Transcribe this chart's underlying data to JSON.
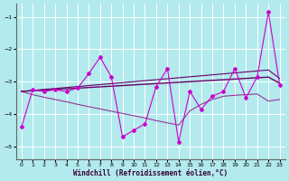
{
  "xlabel": "Windchill (Refroidissement éolien,°C)",
  "background_color": "#b2eaed",
  "grid_color": "#ffffff",
  "xlim": [
    -0.5,
    23.5
  ],
  "ylim": [
    -5.4,
    -0.6
  ],
  "xticks": [
    0,
    1,
    2,
    3,
    4,
    5,
    6,
    7,
    8,
    9,
    10,
    11,
    12,
    13,
    14,
    15,
    16,
    17,
    18,
    19,
    20,
    21,
    22,
    23
  ],
  "yticks": [
    -5,
    -4,
    -3,
    -2,
    -1
  ],
  "hours": [
    0,
    1,
    2,
    3,
    4,
    5,
    6,
    7,
    8,
    9,
    10,
    11,
    12,
    13,
    14,
    15,
    16,
    17,
    18,
    19,
    20,
    21,
    22,
    23
  ],
  "y_main": [
    -4.4,
    -3.25,
    -3.3,
    -3.25,
    -3.3,
    -3.2,
    -2.75,
    -2.25,
    -2.85,
    -4.7,
    -4.5,
    -4.3,
    -3.15,
    -2.6,
    -4.85,
    -3.3,
    -3.85,
    -3.45,
    -3.3,
    -2.6,
    -3.5,
    -2.85,
    -0.85,
    -3.1
  ],
  "y_trend1": [
    -3.3,
    -3.28,
    -3.26,
    -3.24,
    -3.22,
    -3.2,
    -3.18,
    -3.16,
    -3.14,
    -3.12,
    -3.1,
    -3.08,
    -3.06,
    -3.04,
    -3.02,
    -3.0,
    -2.98,
    -2.96,
    -2.94,
    -2.92,
    -2.9,
    -2.88,
    -2.86,
    -3.05
  ],
  "y_trend2": [
    -3.3,
    -3.27,
    -3.24,
    -3.21,
    -3.18,
    -3.15,
    -3.12,
    -3.09,
    -3.06,
    -3.03,
    -3.0,
    -2.97,
    -2.94,
    -2.91,
    -2.88,
    -2.85,
    -2.82,
    -2.79,
    -2.76,
    -2.73,
    -2.7,
    -2.67,
    -2.64,
    -2.9
  ],
  "y_lower": [
    -3.3,
    -3.4,
    -3.48,
    -3.55,
    -3.62,
    -3.7,
    -3.77,
    -3.84,
    -3.91,
    -3.98,
    -4.05,
    -4.12,
    -4.2,
    -4.27,
    -4.34,
    -3.9,
    -3.7,
    -3.55,
    -3.45,
    -3.42,
    -3.4,
    -3.38,
    -3.6,
    -3.55
  ]
}
